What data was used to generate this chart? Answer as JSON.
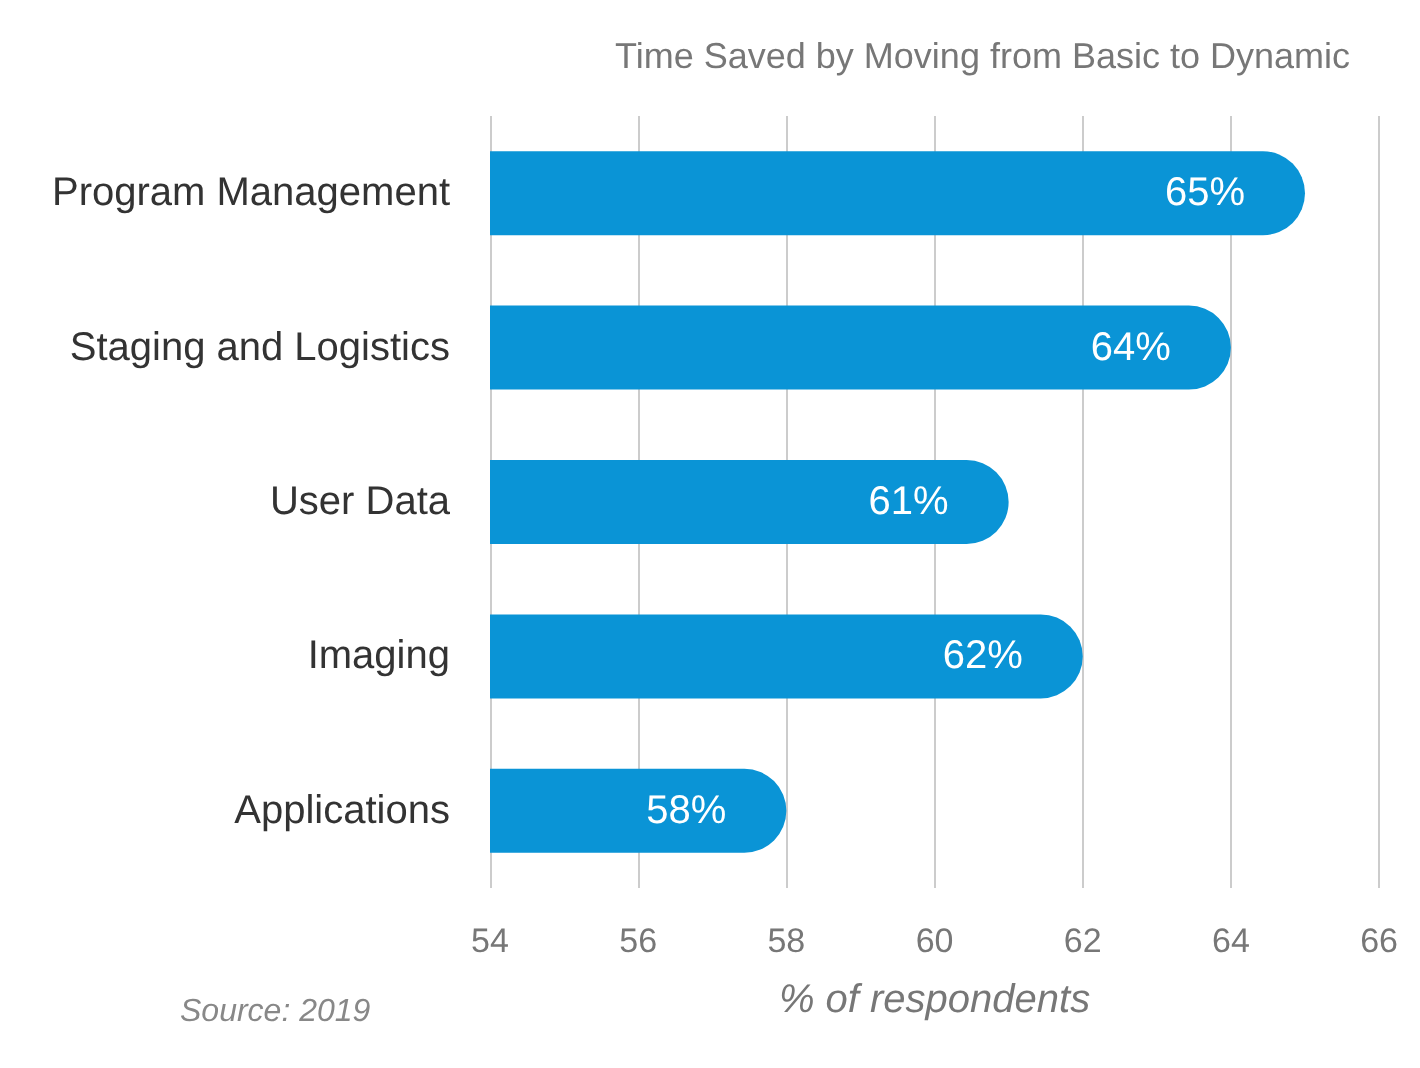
{
  "chart_data": {
    "type": "bar",
    "orientation": "horizontal",
    "title": "Time Saved by Moving from Basic to Dynamic",
    "xlabel": "% of respondents",
    "annotations": [
      "Source: 2019"
    ],
    "categories": [
      "Program Management",
      "Staging and Logistics",
      "User Data",
      "Imaging",
      "Applications"
    ],
    "series": [
      {
        "color": "#0a94d6",
        "values": [
          65,
          64,
          61,
          62,
          58
        ],
        "value_labels": [
          "65%",
          "64%",
          "61%",
          "62%",
          "58%"
        ]
      }
    ],
    "xlim": [
      54,
      66
    ],
    "xticks": [
      54,
      56,
      58,
      60,
      62,
      64,
      66
    ],
    "grid": "x"
  }
}
